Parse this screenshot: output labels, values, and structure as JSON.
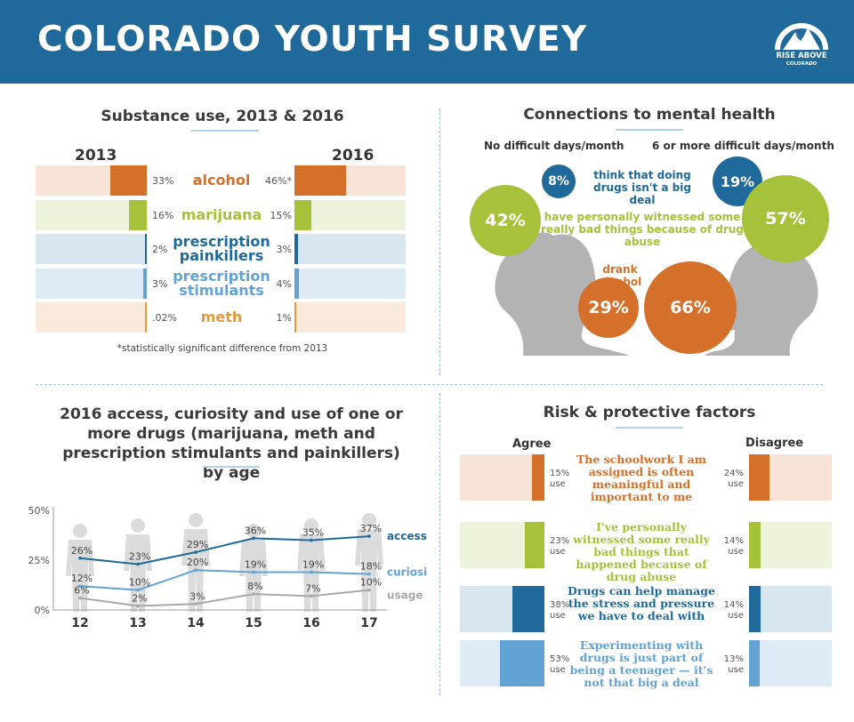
{
  "header": {
    "title": "COLORADO YOUTH SURVEY",
    "logo_line1": "RISE ABOVE",
    "logo_line2": "COLORADO"
  },
  "colors": {
    "header_bg": "#1f6a9a",
    "orange": "#d4702a",
    "green": "#a5c23a",
    "dark_blue": "#1f6a9a",
    "light_blue": "#62a3d4",
    "gray": "#a8a8a8"
  },
  "substance": {
    "title": "Substance use, 2013 & 2016",
    "year_left": "2013",
    "year_right": "2016",
    "footnote": "*statistically significant difference from 2013",
    "rows": [
      {
        "name": "alcohol",
        "label": "alcohol",
        "v2013": 33,
        "v2016": 46,
        "l2013": "33%",
        "l2016": "46%*",
        "color": "#d4702a",
        "bg": "#f7e4d7"
      },
      {
        "name": "marijuana",
        "label": "marijuana",
        "v2013": 16,
        "v2016": 15,
        "l2013": "16%",
        "l2016": "15%",
        "color": "#a5c23a",
        "bg": "#eef3dc"
      },
      {
        "name": "prescription-painkillers",
        "label": "prescription painkillers",
        "v2013": 2,
        "v2016": 3,
        "l2013": "2%",
        "l2016": "3%",
        "color": "#1f6a9a",
        "bg": "#d8e6ef"
      },
      {
        "name": "prescription-stimulants",
        "label": "prescription stimulants",
        "v2013": 3,
        "v2016": 4,
        "l2013": "3%",
        "l2016": "4%",
        "color": "#62a3d4",
        "bg": "#deeaf5"
      },
      {
        "name": "meth",
        "label": "meth",
        "v2013": 0.02,
        "v2016": 1,
        "l2013": ".02%",
        "l2016": "1%",
        "color": "#e39a3e",
        "bg": "#faeadb"
      }
    ]
  },
  "mental": {
    "title": "Connections to mental health",
    "col_left": "No difficult days/month",
    "col_right": "6 or more difficult days/month",
    "items": [
      {
        "text": "think that doing drugs isn't a big deal",
        "left": "8%",
        "right": "19%",
        "left_value": 8,
        "right_value": 19,
        "color": "#1f6a9a"
      },
      {
        "text": "have personally witnessed some really bad things because of drug abuse",
        "left": "42%",
        "right": "57%",
        "left_value": 42,
        "right_value": 57,
        "color": "#a5c23a"
      },
      {
        "text": "drank alcohol",
        "left": "29%",
        "right": "66%",
        "left_value": 29,
        "right_value": 66,
        "color": "#d4702a"
      }
    ]
  },
  "chart_data": {
    "type": "line",
    "title": "2016 access, curiosity and use of one or more drugs (marijuana, meth and prescription stimulants and painkillers) by age",
    "categories": [
      "12",
      "13",
      "14",
      "15",
      "16",
      "17"
    ],
    "ylim": [
      0,
      50
    ],
    "yticks": [
      {
        "value": 0,
        "label": "0%"
      },
      {
        "value": 25,
        "label": "25%"
      },
      {
        "value": 50,
        "label": "50%"
      }
    ],
    "series": [
      {
        "name": "access",
        "color": "#1f6a9a",
        "values": [
          26,
          23,
          29,
          36,
          35,
          37
        ],
        "labels": [
          "26%",
          "23%",
          "29%",
          "36%",
          "35%",
          "37%"
        ]
      },
      {
        "name": "curiosity",
        "color": "#62a3d4",
        "values": [
          12,
          10,
          20,
          19,
          19,
          18
        ],
        "labels": [
          "12%",
          "10%",
          "20%",
          "19%",
          "19%",
          "18%"
        ]
      },
      {
        "name": "usage",
        "color": "#a8a8a8",
        "values": [
          6,
          2,
          3,
          8,
          7,
          10
        ],
        "labels": [
          "6%",
          "2%",
          "3%",
          "8%",
          "7%",
          "10%"
        ]
      }
    ]
  },
  "risk": {
    "title": "Risk & protective factors",
    "agree_label": "Agree",
    "disagree_label": "Disagree",
    "use_word": "use",
    "rows": [
      {
        "name": "schoolwork",
        "statement": "The schoolwork I am assigned is often meaningful and important to me",
        "agree_value": 15,
        "agree": "15%",
        "disagree_value": 24,
        "disagree": "24%",
        "color": "#d4702a",
        "bg": "#f7e4d7"
      },
      {
        "name": "witnessed",
        "statement": "I've personally witnessed some really bad things that happened because of drug abuse",
        "agree_value": 23,
        "agree": "23%",
        "disagree_value": 14,
        "disagree": "14%",
        "color": "#a5c23a",
        "bg": "#eef3dc"
      },
      {
        "name": "stress",
        "statement": "Drugs can help manage the stress and pressure we have to deal with",
        "agree_value": 38,
        "agree": "38%",
        "disagree_value": 14,
        "disagree": "14%",
        "color": "#1f6a9a",
        "bg": "#d8e6ef"
      },
      {
        "name": "teenager",
        "statement": "Experimenting with drugs is just part of being a teenager — it's not that big a deal",
        "agree_value": 53,
        "agree": "53%",
        "disagree_value": 13,
        "disagree": "13%",
        "color": "#62a3d4",
        "bg": "#deeaf5"
      }
    ]
  }
}
